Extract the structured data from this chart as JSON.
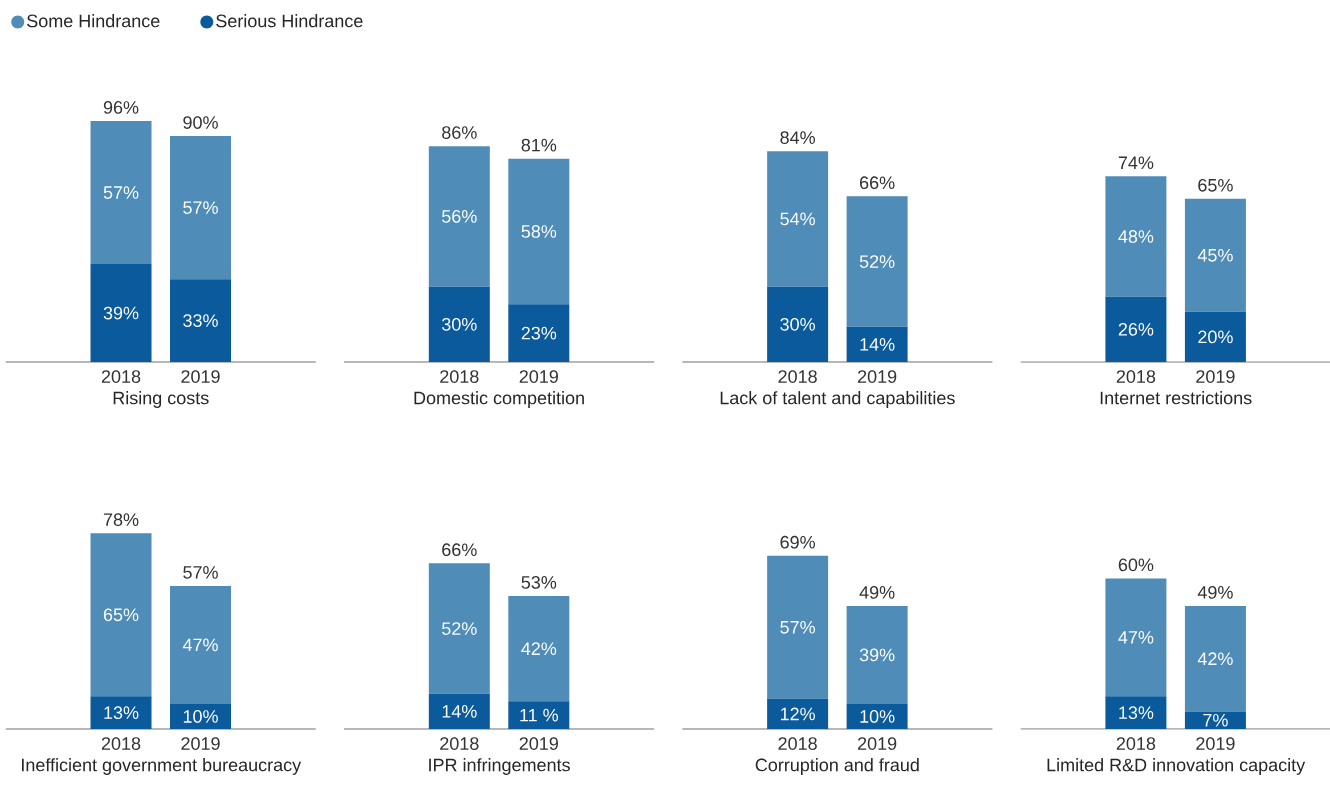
{
  "chart_data": [
    {
      "type": "bar",
      "stacked": true,
      "legend": "top",
      "xlabel": "Rising costs",
      "categories": [
        "2018",
        "2019"
      ],
      "totals": [
        "96%",
        "90%"
      ],
      "series": [
        {
          "name": "Serious Hindrance",
          "color": "#0b5a9c",
          "values": [
            39,
            33
          ],
          "value_labels": [
            "39%",
            "33%"
          ]
        },
        {
          "name": "Some Hindrance",
          "color": "#4f8db8",
          "values": [
            57,
            57
          ],
          "value_labels": [
            "57%",
            "57%"
          ]
        }
      ]
    },
    {
      "type": "bar",
      "stacked": true,
      "xlabel": "Domestic competition",
      "categories": [
        "2018",
        "2019"
      ],
      "totals": [
        "86%",
        "81%"
      ],
      "series": [
        {
          "color": "#0b5a9c",
          "values": [
            30,
            23
          ],
          "value_labels": [
            "30%",
            "23%"
          ]
        },
        {
          "color": "#4f8db8",
          "values": [
            56,
            58
          ],
          "value_labels": [
            "56%",
            "58%"
          ]
        }
      ]
    },
    {
      "type": "bar",
      "stacked": true,
      "xlabel": "Lack of talent and capabilities",
      "categories": [
        "2018",
        "2019"
      ],
      "totals": [
        "84%",
        "66%"
      ],
      "series": [
        {
          "color": "#0b5a9c",
          "values": [
            30,
            14
          ],
          "value_labels": [
            "30%",
            "14%"
          ]
        },
        {
          "color": "#4f8db8",
          "values": [
            54,
            52
          ],
          "value_labels": [
            "54%",
            "52%"
          ]
        }
      ]
    },
    {
      "type": "bar",
      "stacked": true,
      "xlabel": "Internet restrictions",
      "categories": [
        "2018",
        "2019"
      ],
      "totals": [
        "74%",
        "65%"
      ],
      "series": [
        {
          "color": "#0b5a9c",
          "values": [
            26,
            20
          ],
          "value_labels": [
            "26%",
            "20%"
          ]
        },
        {
          "color": "#4f8db8",
          "values": [
            48,
            45
          ],
          "value_labels": [
            "48%",
            "45%"
          ]
        }
      ]
    },
    {
      "type": "bar",
      "stacked": true,
      "xlabel": "Inefficient government bureaucracy",
      "categories": [
        "2018",
        "2019"
      ],
      "totals": [
        "78%",
        "57%"
      ],
      "series": [
        {
          "color": "#0b5a9c",
          "values": [
            13,
            10
          ],
          "value_labels": [
            "13%",
            "10%"
          ]
        },
        {
          "color": "#4f8db8",
          "values": [
            65,
            47
          ],
          "value_labels": [
            "65%",
            "47%"
          ]
        }
      ]
    },
    {
      "type": "bar",
      "stacked": true,
      "xlabel": "IPR infringements",
      "categories": [
        "2018",
        "2019"
      ],
      "totals": [
        "66%",
        "53%"
      ],
      "series": [
        {
          "color": "#0b5a9c",
          "values": [
            14,
            11
          ],
          "value_labels": [
            "14%",
            "11 %"
          ]
        },
        {
          "color": "#4f8db8",
          "values": [
            52,
            42
          ],
          "value_labels": [
            "52%",
            "42%"
          ]
        }
      ]
    },
    {
      "type": "bar",
      "stacked": true,
      "xlabel": "Corruption and fraud",
      "categories": [
        "2018",
        "2019"
      ],
      "totals": [
        "69%",
        "49%"
      ],
      "series": [
        {
          "color": "#0b5a9c",
          "values": [
            12,
            10
          ],
          "value_labels": [
            "12%",
            "10%"
          ]
        },
        {
          "color": "#4f8db8",
          "values": [
            57,
            39
          ],
          "value_labels": [
            "57%",
            "39%"
          ]
        }
      ]
    },
    {
      "type": "bar",
      "stacked": true,
      "xlabel": "Limited R&D innovation capacity",
      "categories": [
        "2018",
        "2019"
      ],
      "totals": [
        "60%",
        "49%"
      ],
      "series": [
        {
          "color": "#0b5a9c",
          "values": [
            13,
            7
          ],
          "value_labels": [
            "13%",
            "7%"
          ]
        },
        {
          "color": "#4f8db8",
          "values": [
            47,
            42
          ],
          "value_labels": [
            "47%",
            "42%"
          ]
        }
      ]
    }
  ]
}
